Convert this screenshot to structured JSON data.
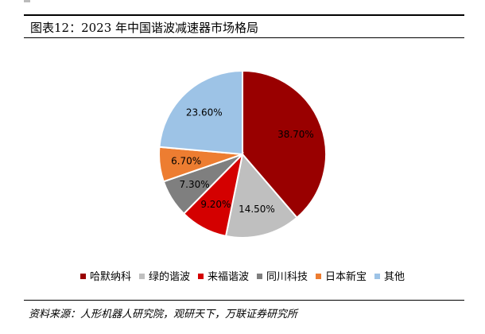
{
  "figure": {
    "title": "图表12：2023 年中国谐波减速器市场格局",
    "source": "资料来源：人形机器人研究院，观研天下，万联证券研究所"
  },
  "chart_data": {
    "type": "pie",
    "title": "",
    "start_angle_deg": 0,
    "direction": "clockwise",
    "legend_position": "bottom",
    "slices": [
      {
        "name": "哈默纳科",
        "value": 38.7,
        "label": "38.70%",
        "color": "#990000"
      },
      {
        "name": "绿的谐波",
        "value": 14.5,
        "label": "14.50%",
        "color": "#bfbfbf"
      },
      {
        "name": "来福谐波",
        "value": 9.2,
        "label": "9.20%",
        "color": "#d40000"
      },
      {
        "name": "同川科技",
        "value": 7.3,
        "label": "7.30%",
        "color": "#7f7f7f"
      },
      {
        "name": "日本新宝",
        "value": 6.7,
        "label": "6.70%",
        "color": "#ed7d31"
      },
      {
        "name": "其他",
        "value": 23.6,
        "label": "23.60%",
        "color": "#9dc3e6"
      }
    ]
  }
}
